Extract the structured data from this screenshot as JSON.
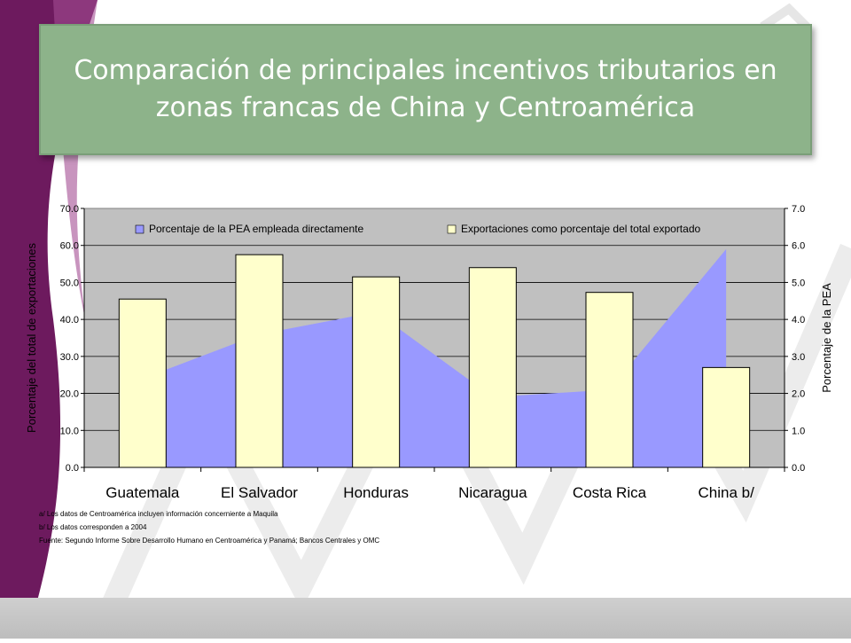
{
  "slide": {
    "title": "Comparación de principales incentivos tributarios en zonas francas de China y Centroamérica",
    "colors": {
      "title_box": "#8db38a",
      "left_band": "#6d1a5e",
      "area_fill": "#9999ff",
      "bar_fill": "#ffffcc",
      "plot_bg": "#c0c0c0"
    },
    "notes": [
      "a/ Los datos de Centroamérica incluyen información concerniente a Maquila",
      "b/ Los datos corresponden a 2004",
      "Fuente: Segundo Informe Sobre Desarrollo Humano en Centroamérica y Panamá; Bancos Centrales y OMC"
    ]
  },
  "chart_data": {
    "type": "bar",
    "categories": [
      "Guatemala",
      "El Salvador",
      "Honduras",
      "Nicaragua",
      "Costa Rica",
      "China b/"
    ],
    "series": [
      {
        "name": "Porcentaje de la PEA empleada directamente",
        "type": "area",
        "axis": "right",
        "values": [
          2.4,
          3.6,
          4.2,
          1.9,
          2.1,
          5.9
        ]
      },
      {
        "name": "Exportaciones como porcentaje del total exportado",
        "type": "bar",
        "axis": "left",
        "values": [
          45.5,
          57.5,
          51.5,
          54.0,
          47.3,
          27.0
        ]
      }
    ],
    "left_axis": {
      "label": "Porcentaje del total de exportaciones",
      "ylim": [
        0,
        70
      ],
      "ticks": [
        "0.0",
        "10.0",
        "20.0",
        "30.0",
        "40.0",
        "50.0",
        "60.0",
        "70.0"
      ]
    },
    "right_axis": {
      "label": "Porcentaje de la PEA",
      "ylim": [
        0,
        7
      ],
      "ticks": [
        "0.0",
        "1.0",
        "2.0",
        "3.0",
        "4.0",
        "5.0",
        "6.0",
        "7.0"
      ]
    },
    "grid": "horizontal",
    "legend": "top"
  }
}
